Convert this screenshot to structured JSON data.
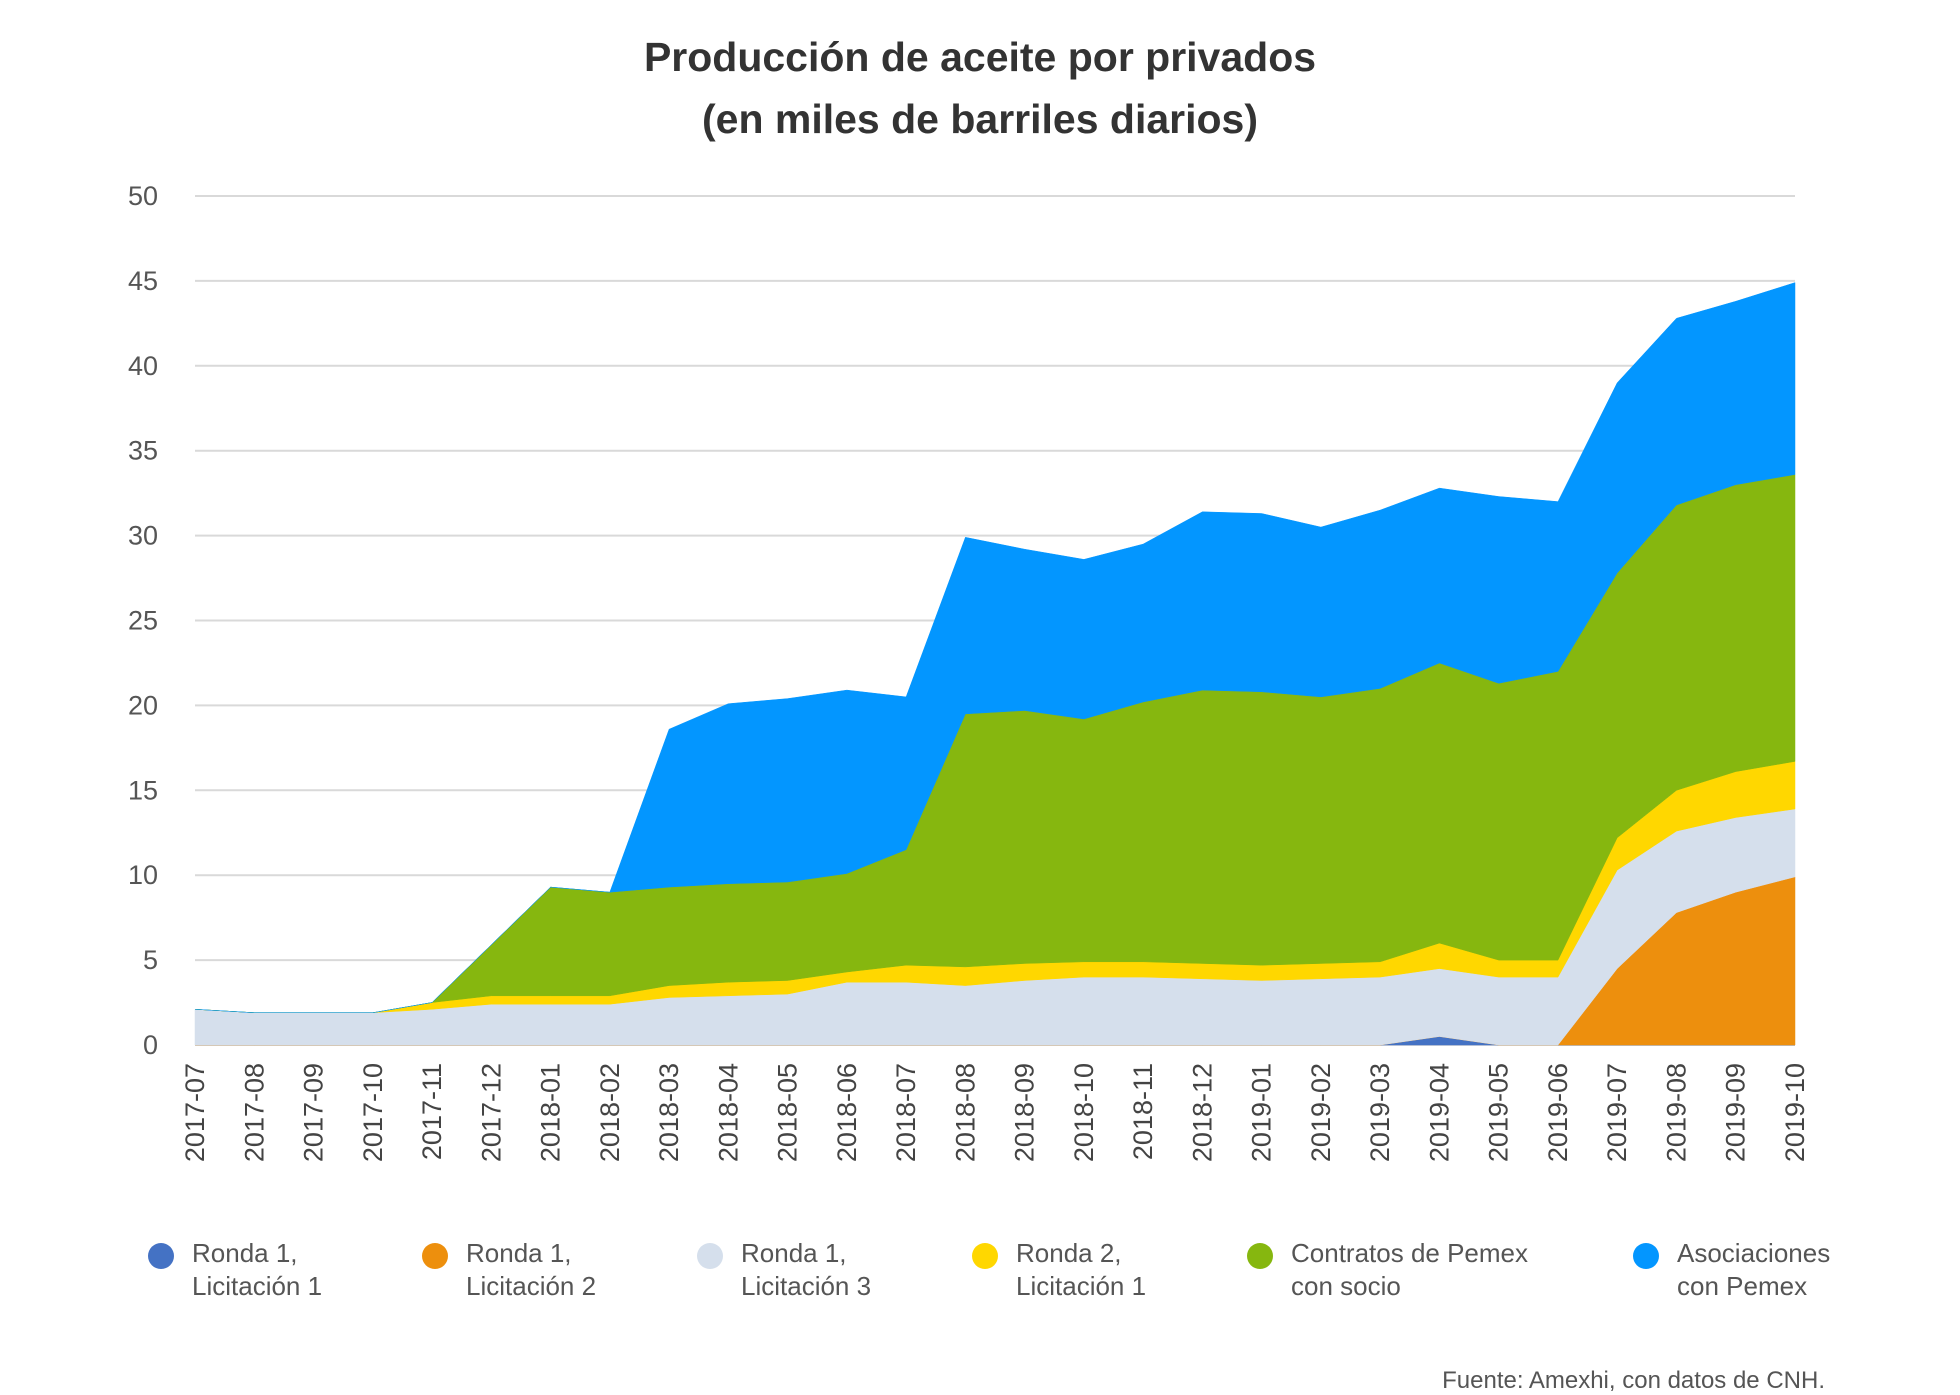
{
  "title": {
    "line1": "Producción de aceite por privados",
    "line2": "(en miles de barriles diarios)"
  },
  "source": "Fuente: Amexhi, con datos de CNH.",
  "chart_data": {
    "type": "area",
    "stacked": true,
    "title": "Producción de aceite por privados (en miles de barriles diarios)",
    "xlabel": "",
    "ylabel": "",
    "ylim": [
      0,
      50
    ],
    "yticks": [
      0,
      5,
      10,
      15,
      20,
      25,
      30,
      35,
      40,
      45,
      50
    ],
    "grid": true,
    "legend_position": "bottom",
    "categories": [
      "2017-07",
      "2017-08",
      "2017-09",
      "2017-10",
      "2017-11",
      "2017-12",
      "2018-01",
      "2018-02",
      "2018-03",
      "2018-04",
      "2018-05",
      "2018-06",
      "2018-07",
      "2018-08",
      "2018-09",
      "2018-10",
      "2018-11",
      "2018-12",
      "2019-01",
      "2019-02",
      "2019-03",
      "2019-04",
      "2019-05",
      "2019-06",
      "2019-07",
      "2019-08",
      "2019-09",
      "2019-10"
    ],
    "series": [
      {
        "name": "Ronda 1, Licitación 1",
        "name_lines": [
          "Ronda 1,",
          "Licitación 1"
        ],
        "color": "#4472C4",
        "values": [
          0,
          0,
          0,
          0,
          0,
          0,
          0,
          0,
          0,
          0,
          0,
          0,
          0,
          0,
          0,
          0,
          0,
          0,
          0,
          0,
          0,
          0.5,
          0,
          0,
          0,
          0,
          0,
          0
        ]
      },
      {
        "name": "Ronda 1, Licitación 2",
        "name_lines": [
          "Ronda 1,",
          "Licitación 2"
        ],
        "color": "#ED8F0D",
        "values": [
          0,
          0,
          0,
          0,
          0,
          0,
          0,
          0,
          0,
          0,
          0,
          0,
          0,
          0,
          0,
          0,
          0,
          0,
          0,
          0,
          0,
          0,
          0,
          0,
          4.5,
          7.8,
          9.0,
          9.9
        ]
      },
      {
        "name": "Ronda 1, Licitación 3",
        "name_lines": [
          "Ronda 1,",
          "Licitación 3"
        ],
        "color": "#D5DFEC",
        "values": [
          2.1,
          1.9,
          1.9,
          1.9,
          2.1,
          2.4,
          2.4,
          2.4,
          2.8,
          2.9,
          3.0,
          3.7,
          3.7,
          3.5,
          3.8,
          4.0,
          4.0,
          3.9,
          3.8,
          3.9,
          4.0,
          4.0,
          4.0,
          4.0,
          5.8,
          4.8,
          4.4,
          4.0
        ]
      },
      {
        "name": "Ronda 2, Licitación 1",
        "name_lines": [
          "Ronda 2,",
          "Licitación 1"
        ],
        "color": "#FFD700",
        "values": [
          0,
          0,
          0,
          0,
          0.4,
          0.5,
          0.5,
          0.5,
          0.7,
          0.8,
          0.8,
          0.6,
          1.0,
          1.1,
          1.0,
          0.9,
          0.9,
          0.9,
          0.9,
          0.9,
          0.9,
          1.5,
          1.0,
          1.0,
          1.9,
          2.4,
          2.7,
          2.8
        ]
      },
      {
        "name": "Contratos de Pemex con socio",
        "name_lines": [
          "Contratos de Pemex",
          "con socio"
        ],
        "color": "#86B70F",
        "values": [
          0,
          0,
          0,
          0,
          0,
          3.0,
          6.4,
          6.1,
          5.8,
          5.8,
          5.8,
          5.8,
          6.8,
          14.9,
          14.9,
          14.3,
          15.3,
          16.1,
          16.1,
          15.7,
          16.1,
          16.5,
          16.3,
          17.0,
          15.6,
          16.8,
          16.9,
          16.9
        ]
      },
      {
        "name": "Asociaciones con Pemex",
        "name_lines": [
          "Asociaciones",
          "con Pemex"
        ],
        "color": "#0396FF",
        "values": [
          0,
          0,
          0,
          0,
          0,
          0,
          0,
          0,
          9.3,
          10.6,
          10.8,
          10.8,
          9.0,
          10.4,
          9.5,
          9.4,
          9.3,
          10.5,
          10.5,
          10.0,
          10.5,
          10.3,
          11.0,
          10.0,
          11.2,
          11.0,
          10.8,
          11.3
        ]
      }
    ]
  }
}
